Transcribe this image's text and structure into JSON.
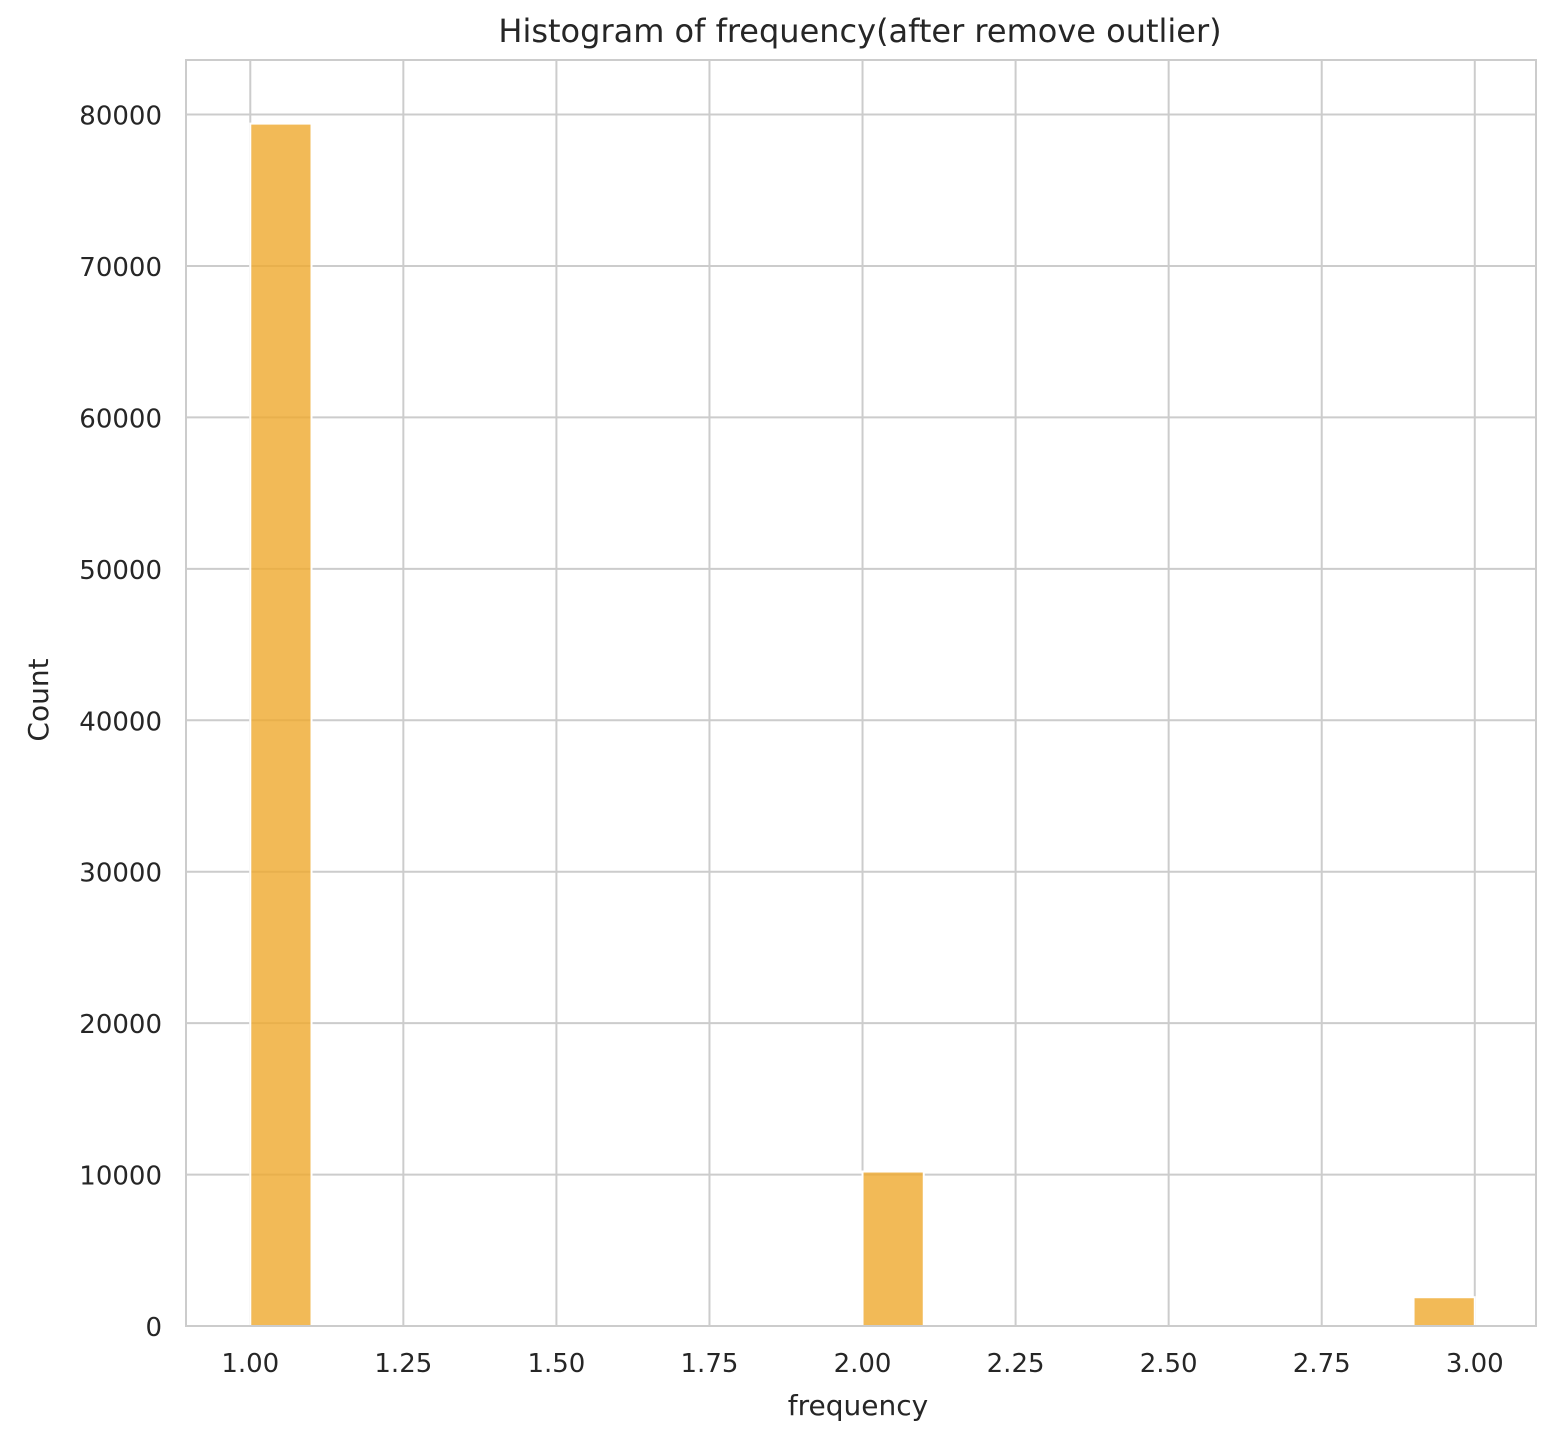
{
  "chart_data": {
    "type": "bar",
    "title": "Histogram of frequency(after remove outlier)",
    "xlabel": "frequency",
    "ylabel": "Count",
    "xlim": [
      0.895,
      3.1
    ],
    "ylim": [
      0,
      83600
    ],
    "x_ticks": [
      1.0,
      1.25,
      1.5,
      1.75,
      2.0,
      2.25,
      2.5,
      2.75,
      3.0
    ],
    "x_tick_labels": [
      "1.00",
      "1.25",
      "1.50",
      "1.75",
      "2.00",
      "2.25",
      "2.50",
      "2.75",
      "3.00"
    ],
    "y_ticks": [
      0,
      10000,
      20000,
      30000,
      40000,
      50000,
      60000,
      70000,
      80000
    ],
    "y_tick_labels": [
      "0",
      "10000",
      "20000",
      "30000",
      "40000",
      "50000",
      "60000",
      "70000",
      "80000"
    ],
    "bars": [
      {
        "x0": 1.0,
        "x1": 1.1,
        "count": 79400
      },
      {
        "x0": 2.0,
        "x1": 2.1,
        "count": 10200
      },
      {
        "x0": 2.9,
        "x1": 3.0,
        "count": 1900
      }
    ],
    "grid": true,
    "bar_color": "#EFA92D",
    "grid_color": "#CCCCCC"
  }
}
